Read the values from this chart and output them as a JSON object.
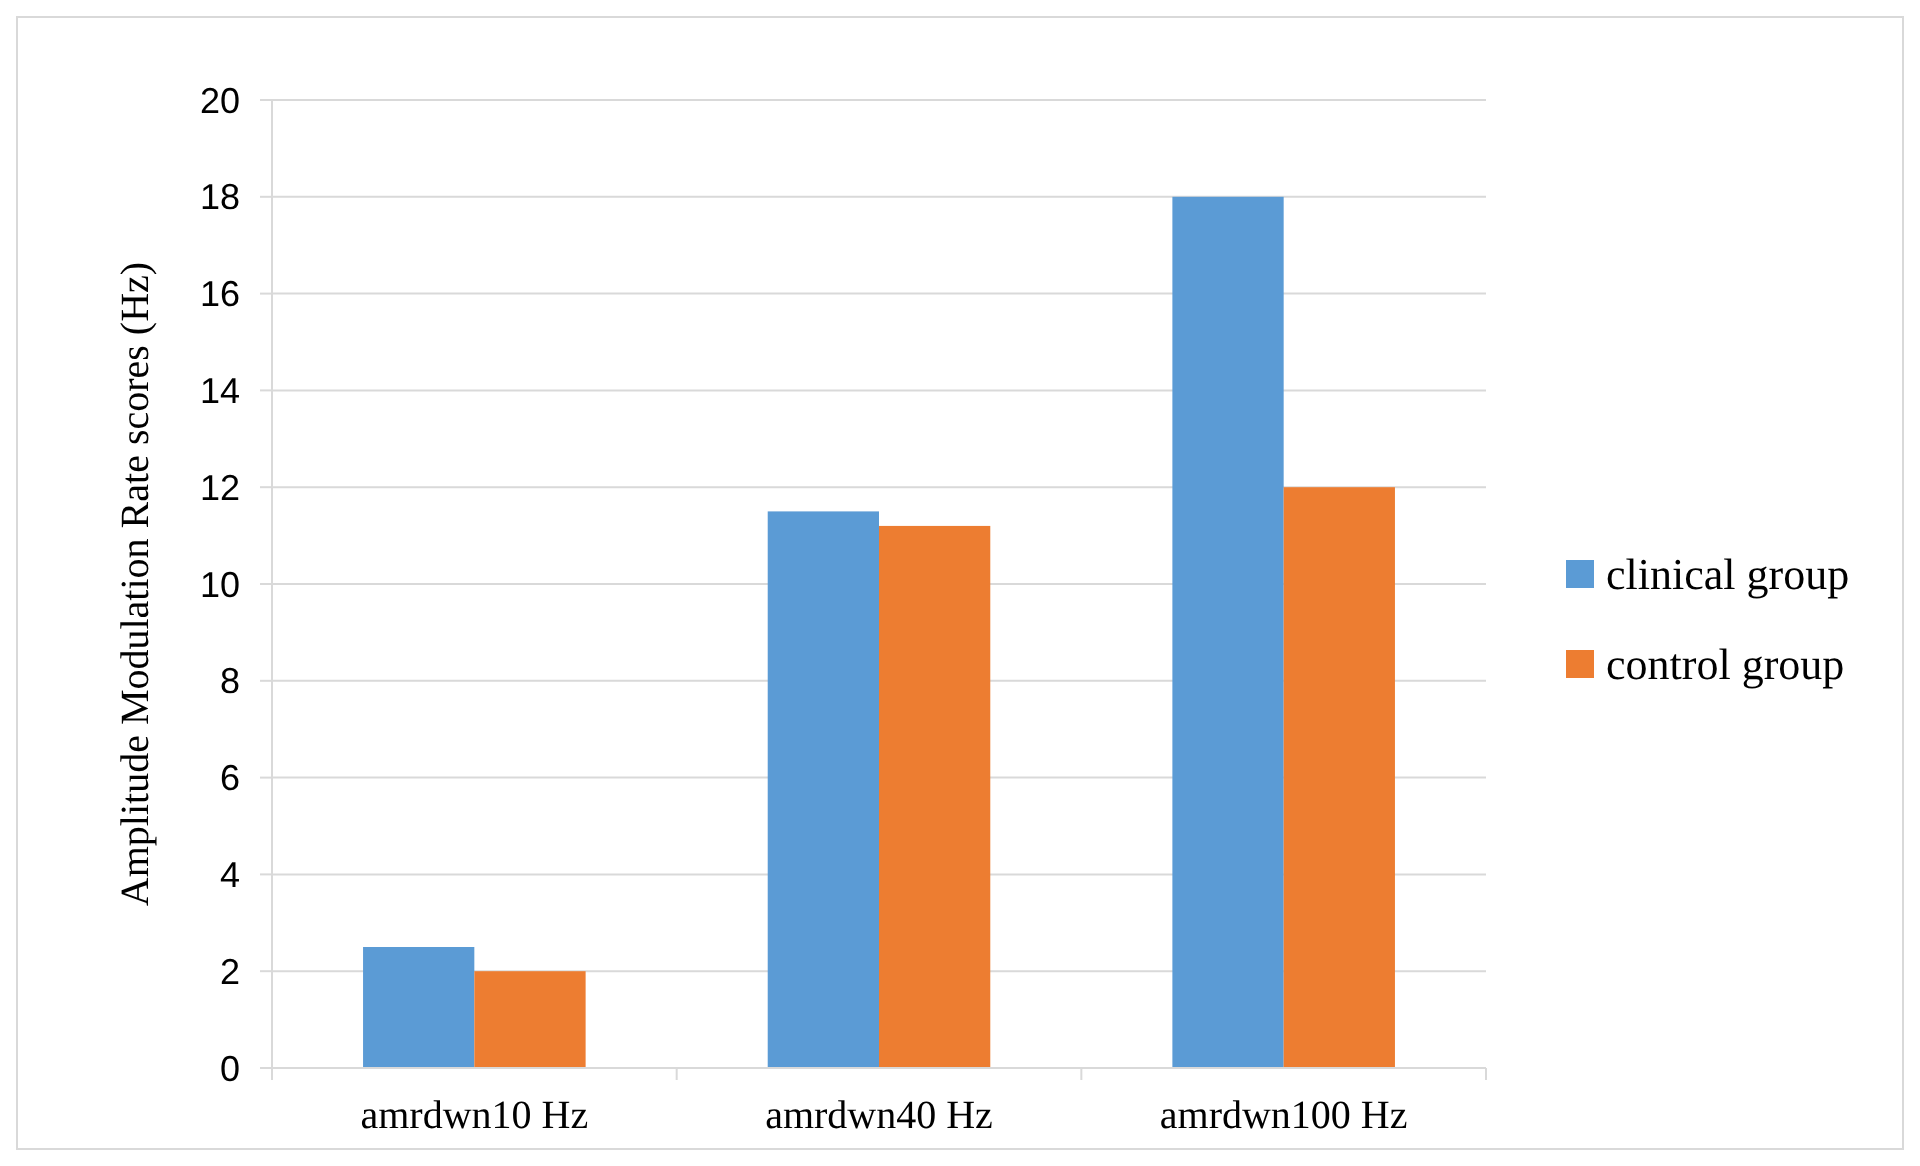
{
  "chart_data": {
    "type": "bar",
    "ylabel": "Amplitude Modulation Rate scores (Hz)",
    "categories": [
      "amrdwn10 Hz",
      "amrdwn40 Hz",
      "amrdwn100 Hz"
    ],
    "series": [
      {
        "name": "clinical group",
        "color": "#5b9bd5",
        "values": [
          2.5,
          11.5,
          18
        ]
      },
      {
        "name": "control group",
        "color": "#ed7d31",
        "values": [
          2,
          11.2,
          12
        ]
      }
    ],
    "ylim": [
      0,
      20
    ],
    "yticks": [
      0,
      2,
      4,
      6,
      8,
      10,
      12,
      14,
      16,
      18,
      20
    ],
    "grid": "y",
    "legend": "right"
  }
}
